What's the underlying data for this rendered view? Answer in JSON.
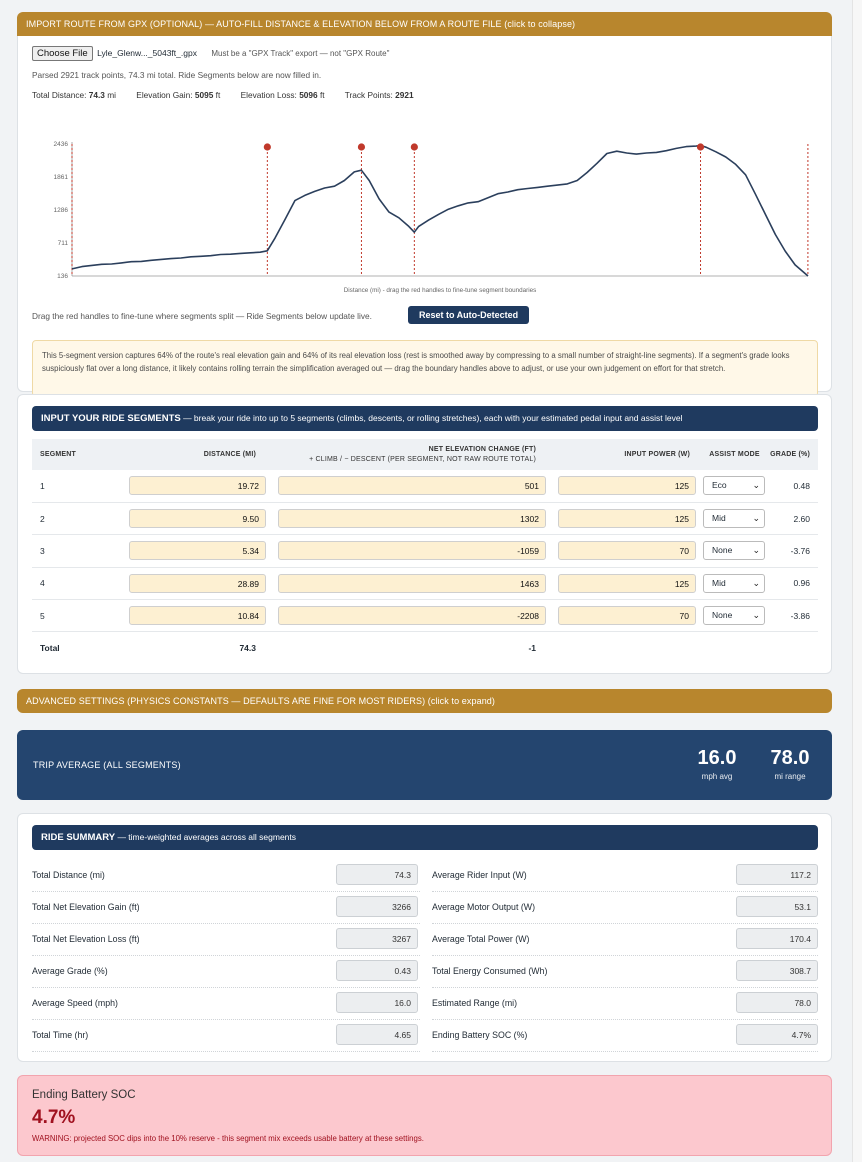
{
  "gpx": {
    "header": "IMPORT ROUTE FROM GPX (OPTIONAL) — AUTO-FILL DISTANCE & ELEVATION BELOW FROM A ROUTE FILE (click to collapse)",
    "choose_label": "Choose File",
    "file_name": "Lyle_Glenw..._5043ft_.gpx",
    "file_hint": "Must be a \"GPX Track\" export — not \"GPX Route\"",
    "parsed_msg": "Parsed 2921 track points, 74.3 mi total. Ride Segments below are now filled in.",
    "stats": {
      "dist_label": "Total Distance:",
      "dist_value": "74.3",
      "dist_unit": "mi",
      "gain_label": "Elevation Gain:",
      "gain_value": "5095",
      "gain_unit": "ft",
      "loss_label": "Elevation Loss:",
      "loss_value": "5096",
      "loss_unit": "ft",
      "points_label": "Track Points:",
      "points_value": "2921"
    },
    "drag_hint": "Drag the red handles to fine-tune where segments split — Ride Segments below update live.",
    "reset_label": "Reset to Auto-Detected",
    "warning": "This 5-segment version captures 64% of the route's real elevation gain and 64% of its real elevation loss (rest is smoothed away by compressing to a small number of straight-line segments). If a segment's grade looks suspiciously flat over a long distance, it likely contains rolling terrain the simplification averaged out — drag the boundary handles above to adjust, or use your own judgement on effort for that stretch."
  },
  "chart_data": {
    "type": "line",
    "xlabel": "Distance (mi) - drag the red handles to fine-tune segment boundaries",
    "ylabel": "",
    "y_ticks": [
      "2436",
      "1861",
      "1286",
      "711",
      "136"
    ],
    "ylim": [
      136,
      2436
    ],
    "xlim": [
      0,
      74.3
    ],
    "boundaries": [
      0,
      19.72,
      29.22,
      34.56,
      63.45,
      74.29
    ],
    "handles_at": [
      19.72,
      29.22,
      34.56,
      63.45
    ],
    "colors": {
      "line": "#2b3f5c",
      "boundary": "#c0392b"
    },
    "series": [
      {
        "x": [
          0,
          1,
          2,
          3,
          4,
          5,
          6,
          7,
          8,
          9,
          10,
          11,
          12,
          13,
          14,
          15,
          16,
          17,
          18,
          19,
          19.72,
          20.5,
          21.5,
          22.5,
          23.5,
          24.5,
          25.5,
          26.5,
          27.5,
          28.5,
          29.22,
          30,
          31,
          32,
          33,
          34,
          34.56,
          35,
          36,
          37,
          38,
          39,
          40,
          41,
          42,
          43,
          44,
          45,
          46,
          47,
          48,
          49,
          50,
          51,
          52,
          53,
          54,
          55,
          56,
          57,
          58,
          59,
          60,
          61,
          62,
          63,
          63.45,
          64,
          65,
          66,
          67,
          68,
          69,
          70,
          71,
          72,
          73,
          74.3
        ],
        "y": [
          260,
          300,
          320,
          340,
          345,
          365,
          385,
          390,
          410,
          425,
          440,
          450,
          470,
          480,
          490,
          510,
          515,
          530,
          540,
          550,
          575,
          800,
          1120,
          1450,
          1540,
          1610,
          1670,
          1700,
          1800,
          1950,
          1980,
          1800,
          1480,
          1250,
          1150,
          1000,
          900,
          1000,
          1110,
          1210,
          1300,
          1360,
          1410,
          1430,
          1500,
          1570,
          1600,
          1640,
          1660,
          1680,
          1700,
          1720,
          1740,
          1800,
          1940,
          2100,
          2270,
          2310,
          2280,
          2260,
          2280,
          2290,
          2320,
          2360,
          2390,
          2400,
          2410,
          2380,
          2300,
          2210,
          2080,
          1900,
          1560,
          1210,
          860,
          570,
          330,
          136
        ]
      }
    ]
  },
  "segments": {
    "header_bold": "INPUT YOUR RIDE SEGMENTS",
    "header_rest": " — break your ride into up to 5 segments (climbs, descents, or rolling stretches), each with your estimated pedal input and assist level",
    "col_segment": "SEGMENT",
    "col_distance": "DISTANCE (MI)",
    "col_elev_1": "NET ELEVATION CHANGE (FT)",
    "col_elev_2": "+ CLIMB / − DESCENT (PER SEGMENT, NOT RAW ROUTE TOTAL)",
    "col_power": "INPUT POWER (W)",
    "col_assist": "ASSIST MODE",
    "col_grade": "GRADE (%)",
    "rows": [
      {
        "n": "1",
        "distance": "19.72",
        "elev": "501",
        "power": "125",
        "mode": "Eco",
        "grade": "0.48"
      },
      {
        "n": "2",
        "distance": "9.50",
        "elev": "1302",
        "power": "125",
        "mode": "Mid",
        "grade": "2.60"
      },
      {
        "n": "3",
        "distance": "5.34",
        "elev": "-1059",
        "power": "70",
        "mode": "None",
        "grade": "-3.76"
      },
      {
        "n": "4",
        "distance": "28.89",
        "elev": "1463",
        "power": "125",
        "mode": "Mid",
        "grade": "0.96"
      },
      {
        "n": "5",
        "distance": "10.84",
        "elev": "-2208",
        "power": "70",
        "mode": "None",
        "grade": "-3.86"
      }
    ],
    "total_label": "Total",
    "total_distance": "74.3",
    "total_elev": "-1"
  },
  "advanced": {
    "header": "ADVANCED SETTINGS (PHYSICS CONSTANTS — DEFAULTS ARE FINE FOR MOST RIDERS) (click to expand)"
  },
  "trip": {
    "label": "TRIP AVERAGE (ALL SEGMENTS)",
    "speed": "16.0",
    "speed_unit": "mph avg",
    "range": "78.0",
    "range_unit": "mi range"
  },
  "summary": {
    "header_bold": "RIDE SUMMARY",
    "header_rest": " — time-weighted averages across all segments",
    "left": [
      {
        "label": "Total Distance (mi)",
        "value": "74.3"
      },
      {
        "label": "Total Net Elevation Gain (ft)",
        "value": "3266"
      },
      {
        "label": "Total Net Elevation Loss (ft)",
        "value": "3267"
      },
      {
        "label": "Average Grade (%)",
        "value": "0.43"
      },
      {
        "label": "Average Speed (mph)",
        "value": "16.0"
      },
      {
        "label": "Total Time (hr)",
        "value": "4.65"
      }
    ],
    "right": [
      {
        "label": "Average Rider Input (W)",
        "value": "117.2"
      },
      {
        "label": "Average Motor Output (W)",
        "value": "53.1"
      },
      {
        "label": "Average Total Power (W)",
        "value": "170.4"
      },
      {
        "label": "Total Energy Consumed (Wh)",
        "value": "308.7"
      },
      {
        "label": "Estimated Range (mi)",
        "value": "78.0"
      },
      {
        "label": "Ending Battery SOC (%)",
        "value": "4.7%"
      }
    ]
  },
  "soc": {
    "title": "Ending Battery SOC",
    "value": "4.7%",
    "warning": "WARNING: projected SOC dips into the 10% reserve - this segment mix exceeds usable battery at these settings.",
    "color": "#a0111f"
  }
}
